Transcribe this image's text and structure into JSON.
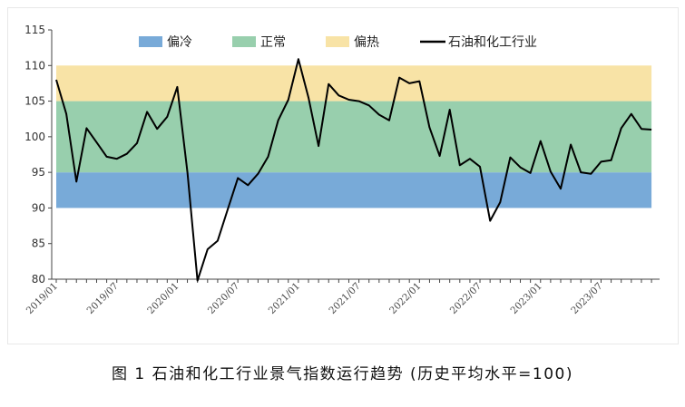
{
  "caption": "图 1  石油和化工行业景气指数运行趋势 (历史平均水平=100)",
  "chart_data": {
    "type": "line",
    "title": "",
    "xlabel": "",
    "ylabel": "",
    "ylim": [
      80,
      115
    ],
    "yticks": [
      80,
      85,
      90,
      95,
      100,
      105,
      110,
      115
    ],
    "x_tick_labels": [
      "2019/01",
      "2019/07",
      "2020/01",
      "2020/07",
      "2021/01",
      "2021/07",
      "2022/01",
      "2022/07",
      "2023/01",
      "2023/07"
    ],
    "bands": [
      {
        "name": "偏冷",
        "from": 90,
        "to": 95,
        "color": "#78aad8"
      },
      {
        "name": "正常",
        "from": 95,
        "to": 105,
        "color": "#98cfad"
      },
      {
        "name": "偏热",
        "from": 105,
        "to": 110,
        "color": "#f8e3a6"
      }
    ],
    "legend_position": "top",
    "series": [
      {
        "name": "石油和化工行业",
        "color": "#000000",
        "x": [
          "2019/01",
          "2019/02",
          "2019/03",
          "2019/04",
          "2019/05",
          "2019/06",
          "2019/07",
          "2019/08",
          "2019/09",
          "2019/10",
          "2019/11",
          "2019/12",
          "2020/01",
          "2020/02",
          "2020/03",
          "2020/04",
          "2020/05",
          "2020/06",
          "2020/07",
          "2020/08",
          "2020/09",
          "2020/10",
          "2020/11",
          "2020/12",
          "2021/01",
          "2021/02",
          "2021/03",
          "2021/04",
          "2021/05",
          "2021/06",
          "2021/07",
          "2021/08",
          "2021/09",
          "2021/10",
          "2021/11",
          "2021/12",
          "2022/01",
          "2022/02",
          "2022/03",
          "2022/04",
          "2022/05",
          "2022/06",
          "2022/07",
          "2022/08",
          "2022/09",
          "2022/10",
          "2022/11",
          "2022/12",
          "2023/01",
          "2023/02",
          "2023/03",
          "2023/04",
          "2023/05",
          "2023/06",
          "2023/07",
          "2023/08",
          "2023/09",
          "2023/10",
          "2023/11",
          "2023/12"
        ],
        "values": [
          108.0,
          103.2,
          93.7,
          101.2,
          99.2,
          97.2,
          96.9,
          97.6,
          99.1,
          103.5,
          101.1,
          102.8,
          107.0,
          95.0,
          79.8,
          84.2,
          85.4,
          89.8,
          94.2,
          93.2,
          94.8,
          97.2,
          102.3,
          105.2,
          110.9,
          105.5,
          98.7,
          107.4,
          105.8,
          105.2,
          105.0,
          104.4,
          103.1,
          102.3,
          108.3,
          107.5,
          107.8,
          101.3,
          97.3,
          103.8,
          96.0,
          96.9,
          95.8,
          88.2,
          90.8,
          97.1,
          95.7,
          94.9,
          99.4,
          95.1,
          92.7,
          98.9,
          95.0,
          94.8,
          96.5,
          96.7,
          101.2,
          103.2,
          101.1,
          101.0
        ]
      }
    ]
  }
}
